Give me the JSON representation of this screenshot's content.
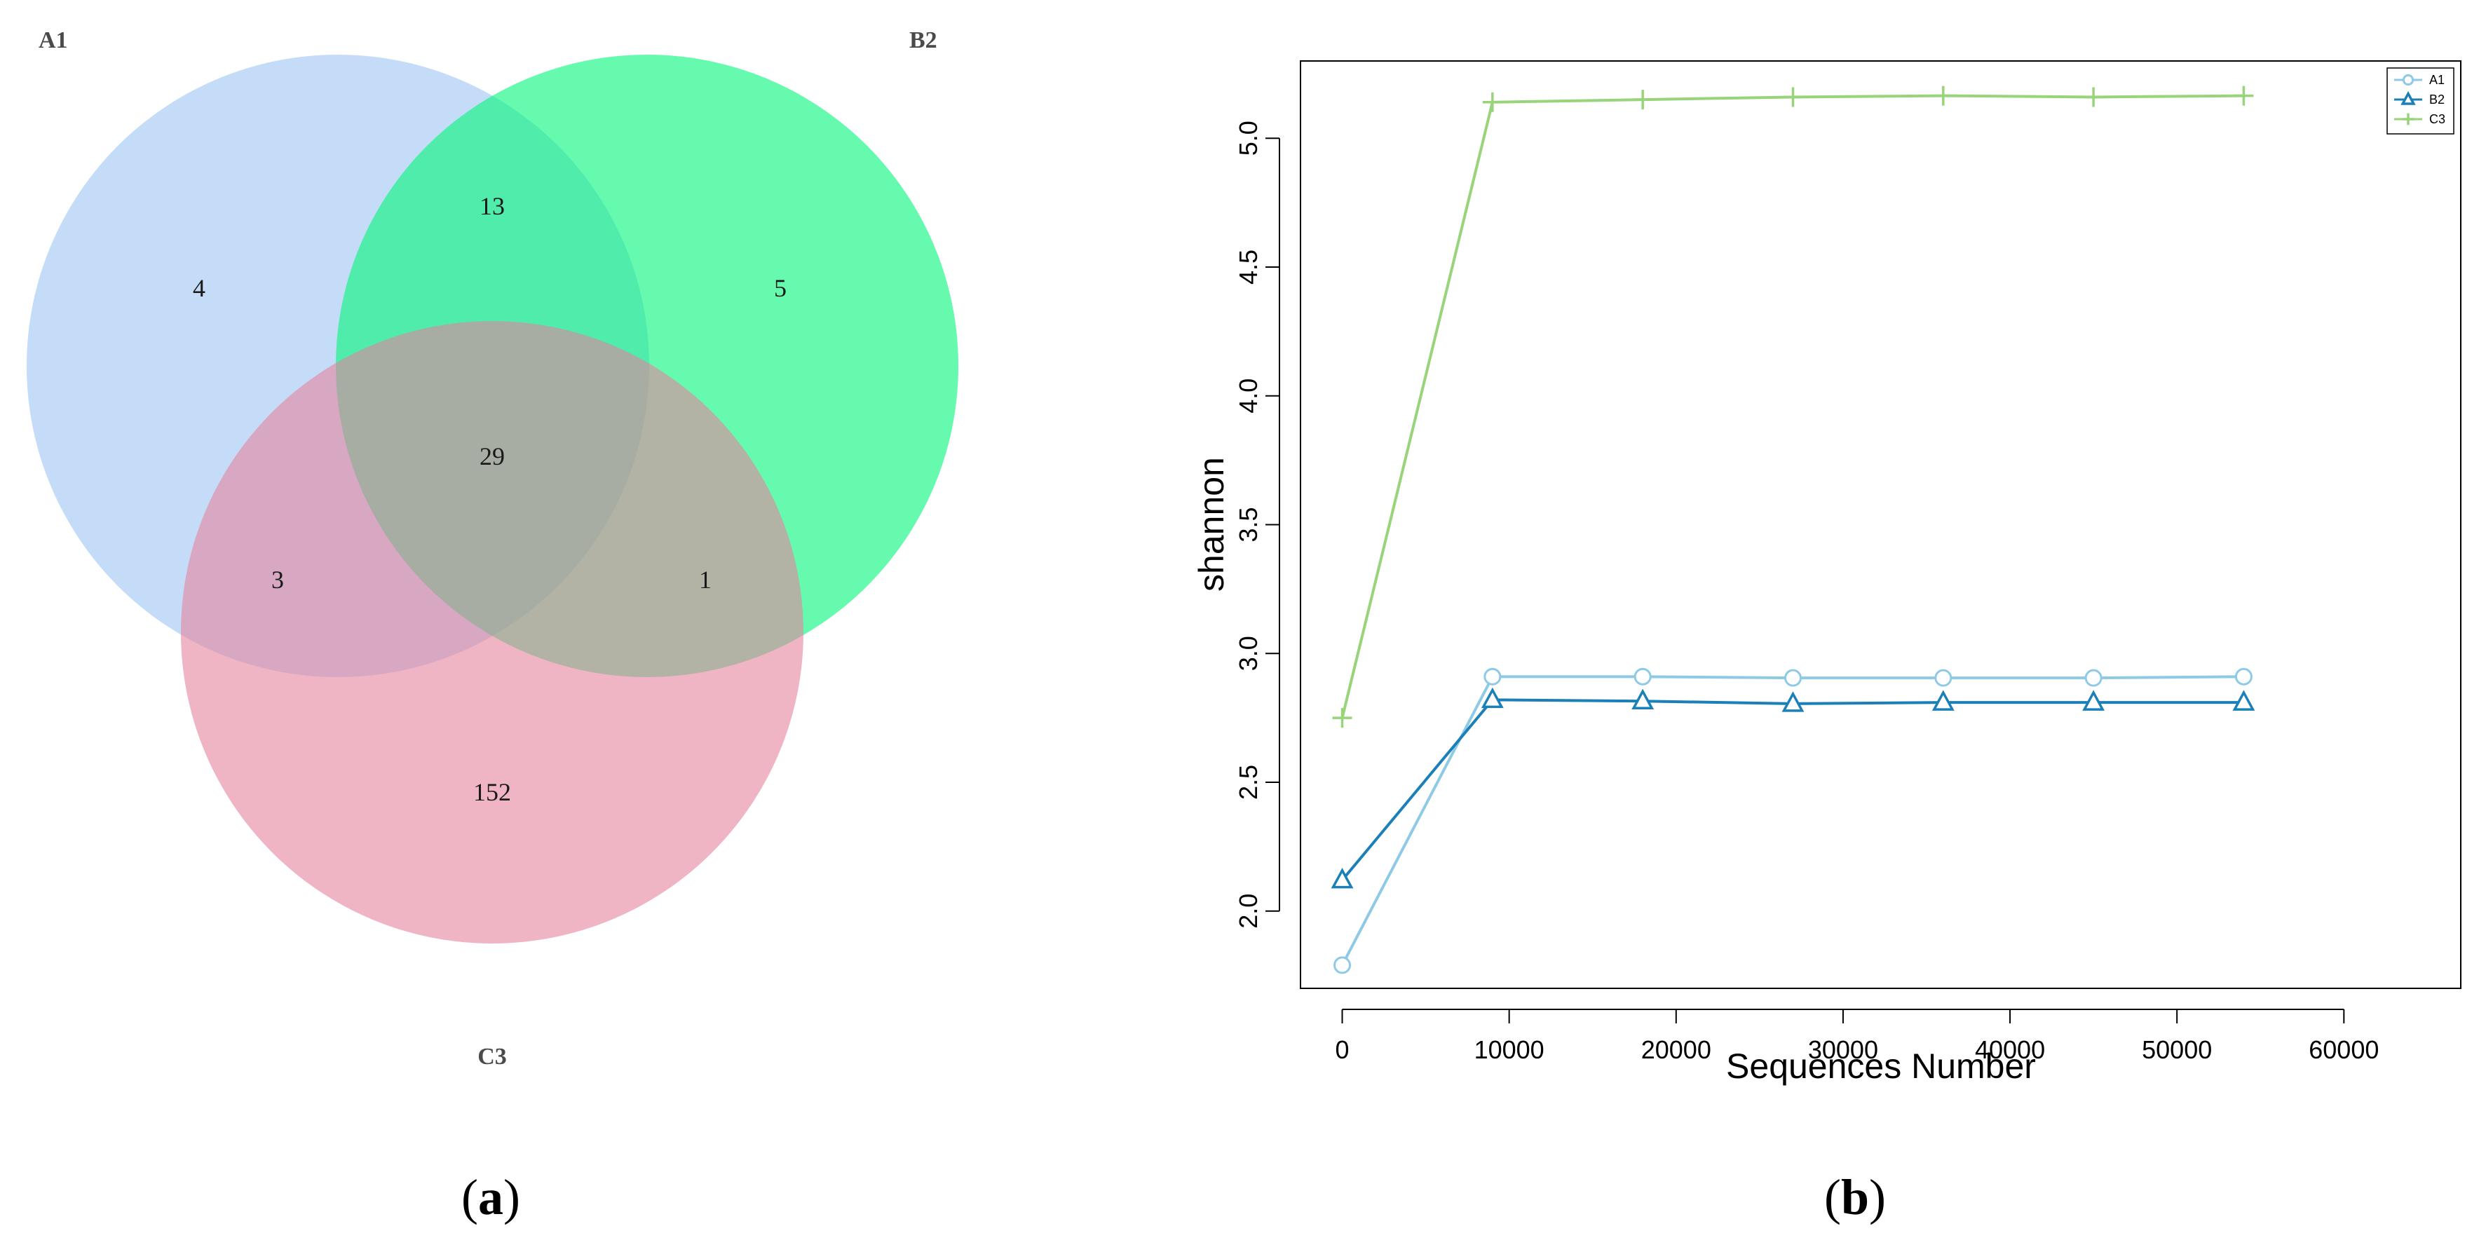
{
  "figure": {
    "panel_a_label": {
      "open": "(",
      "letter": "a",
      "close": ")"
    },
    "panel_b_label": {
      "open": "(",
      "letter": "b",
      "close": ")"
    }
  },
  "chart_data": [
    {
      "type": "venn",
      "sets": [
        {
          "name": "A1",
          "color": "#9fc4f3"
        },
        {
          "name": "B2",
          "color": "#00f77a"
        },
        {
          "name": "C3",
          "color": "#e5839f"
        }
      ],
      "regions": {
        "A1_only": "4",
        "B2_only": "5",
        "C3_only": "152",
        "A1_B2": "13",
        "A1_C3": "3",
        "B2_C3": "1",
        "A1_B2_C3": "29"
      }
    },
    {
      "type": "line",
      "title": "",
      "xlabel": "Sequences Number",
      "ylabel": "shannon",
      "xlim": [
        -2500,
        67000
      ],
      "ylim": [
        1.7,
        5.3
      ],
      "x_ticks": [
        0,
        10000,
        20000,
        30000,
        40000,
        50000,
        60000
      ],
      "y_ticks": [
        2.0,
        2.5,
        3.0,
        3.5,
        4.0,
        4.5,
        5.0
      ],
      "grid": false,
      "legend_position": "top-right",
      "x": [
        0,
        9000,
        18000,
        27000,
        36000,
        45000,
        54000
      ],
      "series": [
        {
          "name": "A1",
          "marker": "circle",
          "color": "#8ecae6",
          "values": [
            1.79,
            2.91,
            2.91,
            2.905,
            2.905,
            2.905,
            2.91
          ]
        },
        {
          "name": "B2",
          "marker": "triangle",
          "color": "#1b7fb8",
          "values": [
            2.12,
            2.82,
            2.815,
            2.805,
            2.81,
            2.81,
            2.81
          ]
        },
        {
          "name": "C3",
          "marker": "plus",
          "color": "#98d47a",
          "values": [
            2.75,
            5.14,
            5.15,
            5.16,
            5.165,
            5.16,
            5.165
          ]
        }
      ]
    }
  ]
}
